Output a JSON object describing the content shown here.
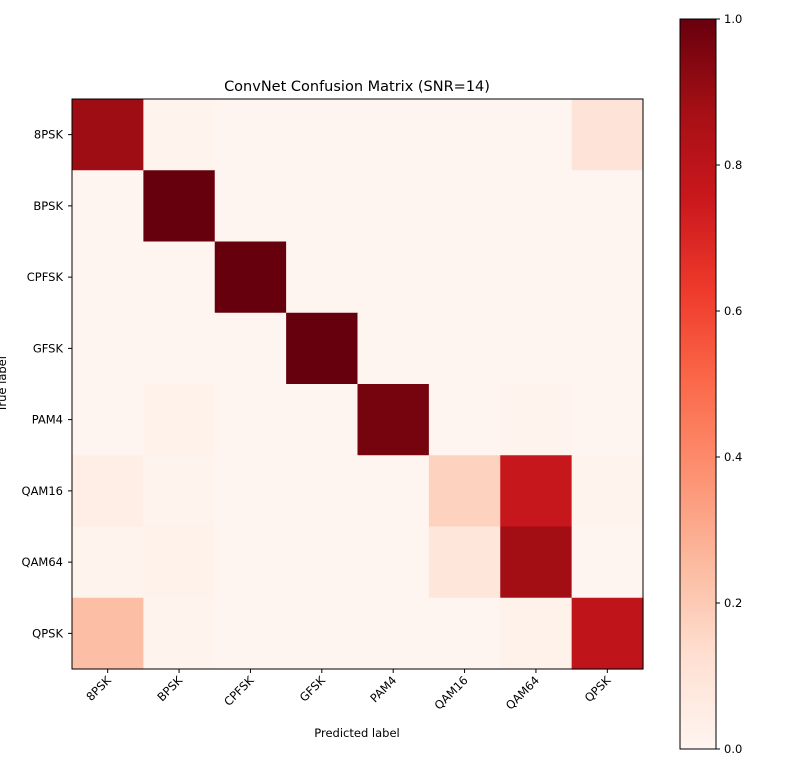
{
  "chart_data": {
    "type": "heatmap",
    "title": "ConvNet Confusion Matrix (SNR=14)",
    "xlabel": "Predicted label",
    "ylabel": "True label",
    "x_categories": [
      "8PSK",
      "BPSK",
      "CPFSK",
      "GFSK",
      "PAM4",
      "QAM16",
      "QAM64",
      "QPSK"
    ],
    "y_categories": [
      "8PSK",
      "BPSK",
      "CPFSK",
      "GFSK",
      "PAM4",
      "QAM16",
      "QAM64",
      "QPSK"
    ],
    "matrix": [
      [
        0.89,
        0.01,
        0.0,
        0.0,
        0.0,
        0.0,
        0.0,
        0.1
      ],
      [
        0.0,
        1.0,
        0.0,
        0.0,
        0.0,
        0.0,
        0.0,
        0.0
      ],
      [
        0.0,
        0.0,
        1.0,
        0.0,
        0.0,
        0.0,
        0.0,
        0.0
      ],
      [
        0.0,
        0.0,
        0.0,
        1.0,
        0.0,
        0.0,
        0.0,
        0.0
      ],
      [
        0.0,
        0.02,
        0.0,
        0.0,
        0.97,
        0.0,
        0.01,
        0.0
      ],
      [
        0.04,
        0.01,
        0.0,
        0.0,
        0.0,
        0.17,
        0.77,
        0.01
      ],
      [
        0.01,
        0.02,
        0.0,
        0.0,
        0.0,
        0.09,
        0.88,
        0.0
      ],
      [
        0.24,
        0.01,
        0.0,
        0.0,
        0.0,
        0.0,
        0.02,
        0.79
      ]
    ],
    "colormap": "Reds",
    "vmin": 0,
    "vmax": 1,
    "colorbar_ticks": [
      "0.0",
      "0.2",
      "0.4",
      "0.6",
      "0.8",
      "1.0"
    ],
    "colorbar_tick_values": [
      0,
      0.2,
      0.4,
      0.6,
      0.8,
      1.0
    ],
    "x_tick_rotation": 45,
    "grid": false
  }
}
